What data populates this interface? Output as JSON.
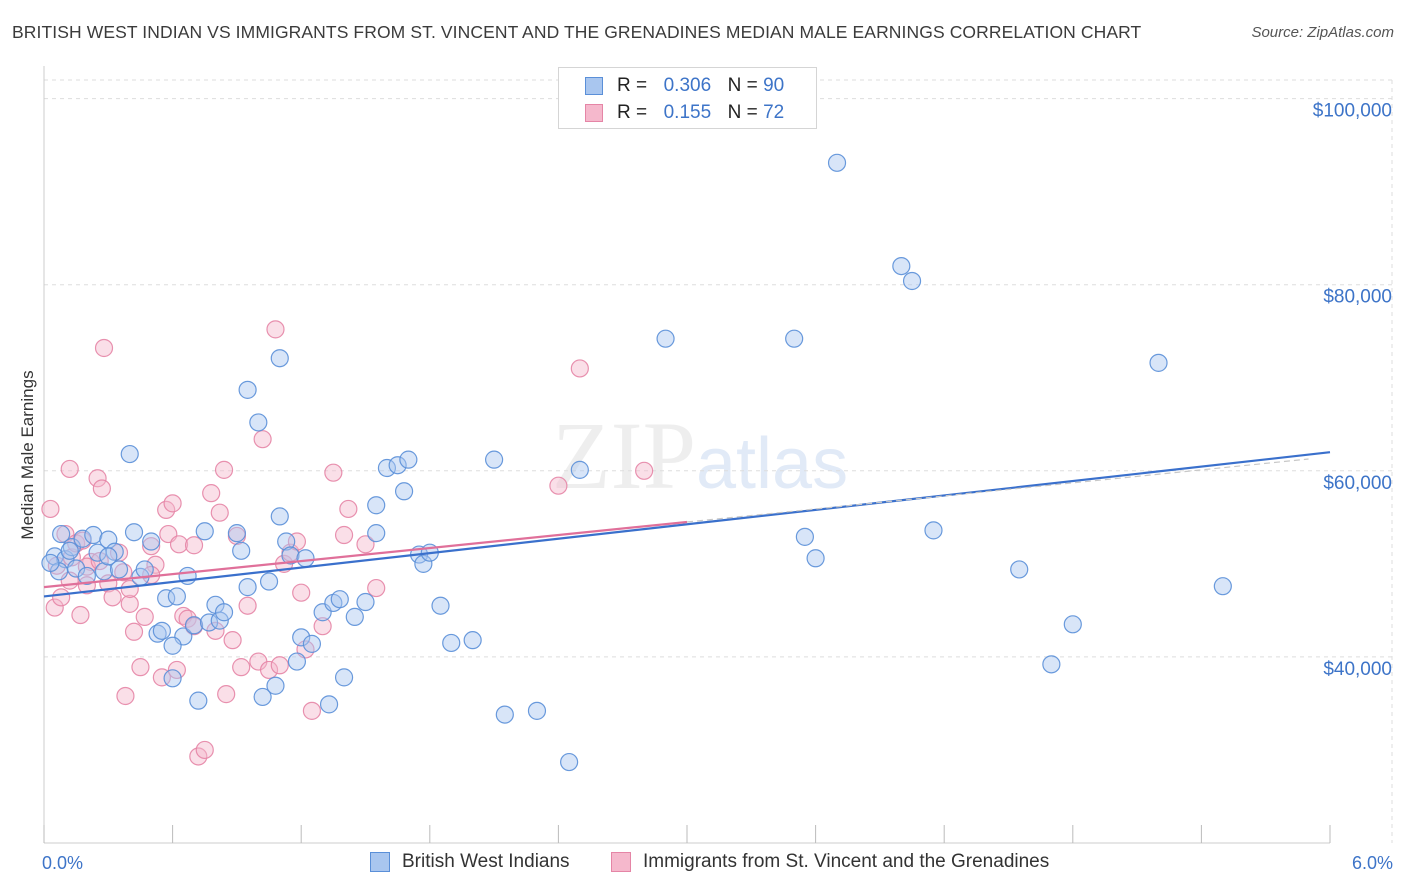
{
  "header": {
    "title": "BRITISH WEST INDIAN VS IMMIGRANTS FROM ST. VINCENT AND THE GRENADINES MEDIAN MALE EARNINGS CORRELATION CHART",
    "source": "Source: ZipAtlas.com"
  },
  "watermark": {
    "zip": "ZIP",
    "atlas": "atlas"
  },
  "legend_top": {
    "rows": [
      {
        "r_label": "R =",
        "r_value": "0.306",
        "n_label": "N =",
        "n_value": "90"
      },
      {
        "r_label": "R =",
        "r_value": "0.155",
        "n_label": "N =",
        "n_value": "72"
      }
    ]
  },
  "legend_bottom": {
    "items": [
      "British West Indians",
      "Immigrants from St. Vincent and the Grenadines"
    ]
  },
  "colors": {
    "blue_fill": "#a9c6ef",
    "blue_stroke": "#5a8fd8",
    "blue_line": "#3a70cc",
    "pink_fill": "#f5b8cc",
    "pink_stroke": "#e585a6",
    "pink_line": "#e0709a",
    "axis_text": "#3d74c8",
    "grid": "#dddddd"
  },
  "chart_data": {
    "type": "scatter",
    "title": "BRITISH WEST INDIAN VS IMMIGRANTS FROM ST. VINCENT AND THE GRENADINES MEDIAN MALE EARNINGS CORRELATION CHART",
    "xlabel": "",
    "ylabel": "Median Male Earnings",
    "xlim": [
      0,
      6.0
    ],
    "ylim": [
      20000,
      102000
    ],
    "x_tick_labels": [
      "0.0%",
      "6.0%"
    ],
    "y_ticks": [
      40000,
      60000,
      80000,
      100000
    ],
    "y_tick_labels": [
      "$40,000",
      "$60,000",
      "$80,000",
      "$100,000"
    ],
    "grid": true,
    "legend_position": "top-center",
    "series": [
      {
        "name": "British West Indians",
        "R": 0.306,
        "N": 90,
        "trend": {
          "x": [
            0.0,
            6.0
          ],
          "y": [
            46500,
            62000
          ]
        },
        "points": [
          [
            0.05,
            50800
          ],
          [
            0.08,
            53200
          ],
          [
            0.1,
            50500
          ],
          [
            0.13,
            51800
          ],
          [
            0.15,
            49500
          ],
          [
            0.18,
            52700
          ],
          [
            0.2,
            48700
          ],
          [
            0.23,
            53100
          ],
          [
            0.25,
            51200
          ],
          [
            0.28,
            49200
          ],
          [
            0.3,
            52600
          ],
          [
            0.33,
            51300
          ],
          [
            0.35,
            49400
          ],
          [
            0.4,
            61800
          ],
          [
            0.42,
            53400
          ],
          [
            0.45,
            48600
          ],
          [
            0.47,
            49400
          ],
          [
            0.5,
            52400
          ],
          [
            0.53,
            42500
          ],
          [
            0.55,
            42800
          ],
          [
            0.57,
            46300
          ],
          [
            0.6,
            37700
          ],
          [
            0.62,
            46500
          ],
          [
            0.65,
            42200
          ],
          [
            0.67,
            48700
          ],
          [
            0.7,
            43400
          ],
          [
            0.72,
            35300
          ],
          [
            0.75,
            53500
          ],
          [
            0.77,
            43700
          ],
          [
            0.8,
            45600
          ],
          [
            0.82,
            43900
          ],
          [
            0.84,
            44800
          ],
          [
            0.9,
            53300
          ],
          [
            0.92,
            51400
          ],
          [
            0.95,
            47500
          ],
          [
            1.0,
            65200
          ],
          [
            1.02,
            35700
          ],
          [
            1.05,
            48100
          ],
          [
            1.08,
            36900
          ],
          [
            1.1,
            55100
          ],
          [
            1.13,
            52400
          ],
          [
            1.15,
            50900
          ],
          [
            1.18,
            39500
          ],
          [
            1.2,
            42100
          ],
          [
            1.22,
            50600
          ],
          [
            1.25,
            41400
          ],
          [
            1.3,
            44800
          ],
          [
            1.33,
            34900
          ],
          [
            1.35,
            45800
          ],
          [
            1.38,
            46200
          ],
          [
            1.4,
            37800
          ],
          [
            1.45,
            44300
          ],
          [
            1.5,
            45900
          ],
          [
            1.55,
            53300
          ],
          [
            1.6,
            60300
          ],
          [
            1.65,
            60600
          ],
          [
            1.68,
            57800
          ],
          [
            1.7,
            61200
          ],
          [
            1.75,
            51000
          ],
          [
            1.77,
            50000
          ],
          [
            1.8,
            51200
          ],
          [
            1.85,
            45500
          ],
          [
            1.9,
            41500
          ],
          [
            2.0,
            41800
          ],
          [
            2.1,
            61200
          ],
          [
            2.15,
            33800
          ],
          [
            2.3,
            34200
          ],
          [
            2.45,
            28700
          ],
          [
            2.5,
            60100
          ],
          [
            2.9,
            74200
          ],
          [
            3.5,
            74200
          ],
          [
            3.55,
            52900
          ],
          [
            3.6,
            50600
          ],
          [
            3.7,
            93100
          ],
          [
            4.0,
            82000
          ],
          [
            4.05,
            80400
          ],
          [
            4.15,
            53600
          ],
          [
            4.55,
            49400
          ],
          [
            4.7,
            39200
          ],
          [
            4.8,
            43500
          ],
          [
            5.2,
            71600
          ],
          [
            5.5,
            47600
          ],
          [
            0.95,
            68700
          ],
          [
            1.1,
            72100
          ],
          [
            0.3,
            50800
          ],
          [
            0.12,
            51400
          ],
          [
            0.07,
            49200
          ],
          [
            0.6,
            41200
          ],
          [
            1.55,
            56300
          ],
          [
            0.03,
            50100
          ]
        ]
      },
      {
        "name": "Immigrants from St. Vincent and the Grenadines",
        "R": 0.155,
        "N": 72,
        "trend": {
          "x": [
            0.0,
            3.0
          ],
          "y": [
            47500,
            54500
          ]
        },
        "points": [
          [
            0.03,
            55900
          ],
          [
            0.05,
            45300
          ],
          [
            0.06,
            49800
          ],
          [
            0.08,
            46400
          ],
          [
            0.1,
            53200
          ],
          [
            0.12,
            60200
          ],
          [
            0.13,
            50700
          ],
          [
            0.15,
            52200
          ],
          [
            0.17,
            44500
          ],
          [
            0.18,
            52500
          ],
          [
            0.2,
            47700
          ],
          [
            0.22,
            50200
          ],
          [
            0.25,
            59200
          ],
          [
            0.27,
            58100
          ],
          [
            0.28,
            73200
          ],
          [
            0.3,
            47900
          ],
          [
            0.32,
            46400
          ],
          [
            0.35,
            51200
          ],
          [
            0.37,
            49100
          ],
          [
            0.38,
            35800
          ],
          [
            0.4,
            45700
          ],
          [
            0.42,
            42700
          ],
          [
            0.45,
            38900
          ],
          [
            0.47,
            44300
          ],
          [
            0.5,
            51900
          ],
          [
            0.52,
            49900
          ],
          [
            0.55,
            37800
          ],
          [
            0.57,
            55800
          ],
          [
            0.58,
            53200
          ],
          [
            0.6,
            56500
          ],
          [
            0.62,
            38600
          ],
          [
            0.63,
            52100
          ],
          [
            0.65,
            44400
          ],
          [
            0.67,
            44100
          ],
          [
            0.7,
            43300
          ],
          [
            0.72,
            29300
          ],
          [
            0.75,
            30000
          ],
          [
            0.78,
            57600
          ],
          [
            0.8,
            42800
          ],
          [
            0.82,
            55500
          ],
          [
            0.84,
            60100
          ],
          [
            0.85,
            36000
          ],
          [
            0.88,
            41800
          ],
          [
            0.9,
            53000
          ],
          [
            0.92,
            38900
          ],
          [
            0.95,
            45500
          ],
          [
            1.0,
            39500
          ],
          [
            1.02,
            63400
          ],
          [
            1.05,
            38600
          ],
          [
            1.08,
            75200
          ],
          [
            1.1,
            39100
          ],
          [
            1.12,
            50000
          ],
          [
            1.15,
            51200
          ],
          [
            1.18,
            52400
          ],
          [
            1.2,
            46900
          ],
          [
            1.22,
            40800
          ],
          [
            1.25,
            34200
          ],
          [
            1.3,
            43300
          ],
          [
            1.35,
            59800
          ],
          [
            1.4,
            53100
          ],
          [
            1.42,
            55900
          ],
          [
            1.5,
            52100
          ],
          [
            1.55,
            47400
          ],
          [
            2.4,
            58400
          ],
          [
            2.5,
            71000
          ],
          [
            2.8,
            60000
          ],
          [
            0.12,
            48200
          ],
          [
            0.2,
            49700
          ],
          [
            0.4,
            47300
          ],
          [
            0.5,
            48800
          ],
          [
            0.7,
            52000
          ],
          [
            0.26,
            50300
          ]
        ]
      }
    ]
  }
}
